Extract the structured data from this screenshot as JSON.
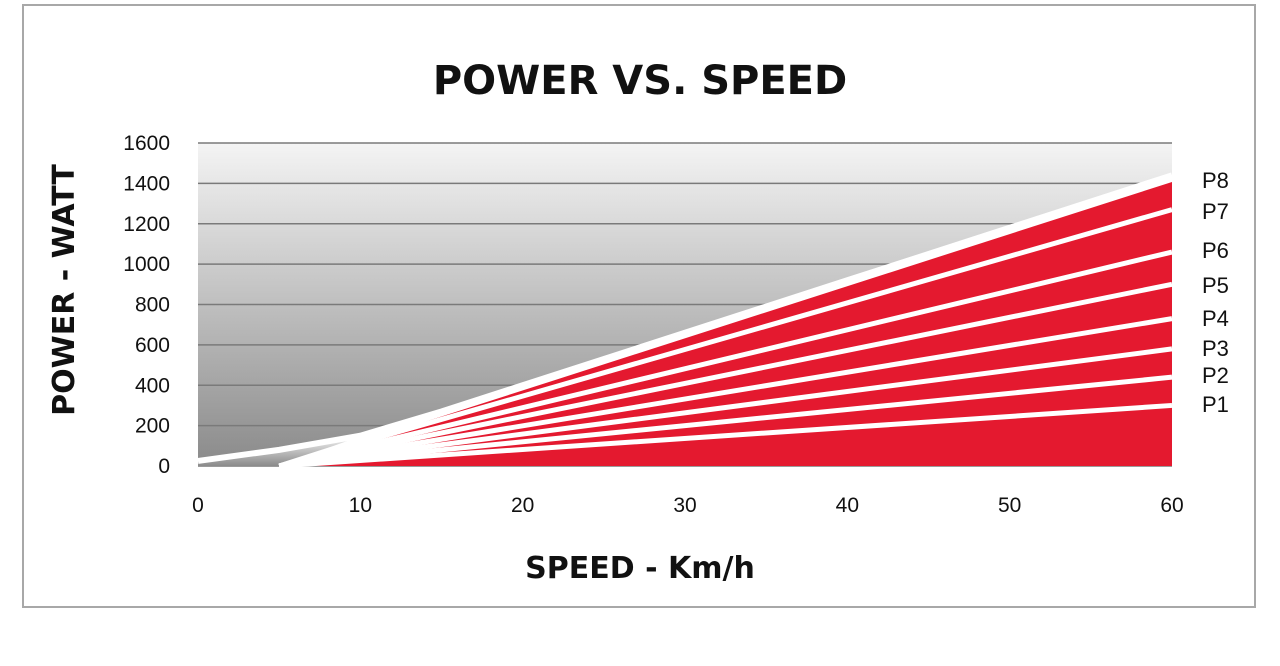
{
  "chart_data": {
    "type": "area",
    "title": "POWER VS. SPEED",
    "xlabel": "SPEED - Km/h",
    "ylabel": "POWER - WATT",
    "xlim": [
      0,
      60
    ],
    "ylim": [
      0,
      1600
    ],
    "xticks": [
      "0",
      "10",
      "20",
      "30",
      "40",
      "50",
      "60"
    ],
    "yticks": [
      "0",
      "200",
      "400",
      "600",
      "800",
      "1000",
      "1200",
      "1400",
      "1600"
    ],
    "grid": true,
    "colors": {
      "band": "#e4192f",
      "separator": "#ffffff",
      "bg_top": "#f4f4f4",
      "bg_bottom": "#8a8a8a",
      "grid": "#7a7a7a"
    },
    "envelope": {
      "x": [
        0,
        5,
        10,
        15,
        20,
        30,
        40,
        50,
        60
      ],
      "y": [
        25,
        80,
        150,
        270,
        400,
        660,
        920,
        1180,
        1440
      ]
    },
    "series": [
      {
        "name": "P1",
        "x": [
          5,
          60
        ],
        "y": [
          0,
          300
        ]
      },
      {
        "name": "P2",
        "x": [
          5,
          60
        ],
        "y": [
          0,
          440
        ]
      },
      {
        "name": "P3",
        "x": [
          5,
          60
        ],
        "y": [
          0,
          580
        ]
      },
      {
        "name": "P4",
        "x": [
          5,
          60
        ],
        "y": [
          0,
          730
        ]
      },
      {
        "name": "P5",
        "x": [
          5,
          60
        ],
        "y": [
          0,
          900
        ]
      },
      {
        "name": "P6",
        "x": [
          5,
          60
        ],
        "y": [
          0,
          1060
        ]
      },
      {
        "name": "P7",
        "x": [
          5,
          60
        ],
        "y": [
          0,
          1270
        ]
      },
      {
        "name": "P8",
        "x": [
          5,
          60
        ],
        "y": [
          0,
          1420
        ]
      }
    ]
  }
}
